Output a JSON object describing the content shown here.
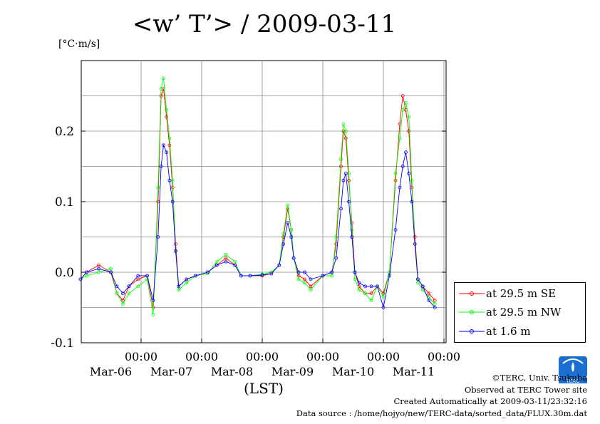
{
  "chart_data": {
    "type": "line",
    "title": "<w’ T’> / 2009-03-11",
    "ylabel": "[°C·m/s]",
    "xlabel": "(LST)",
    "ylim": [
      -0.1,
      0.3
    ],
    "yticks": [
      {
        "value": 0.2,
        "label": "0.2"
      },
      {
        "value": 0.1,
        "label": "0.1"
      },
      {
        "value": 0.0,
        "label": "0.0"
      },
      {
        "value": -0.1,
        "label": "-0.1"
      }
    ],
    "xlim_days": [
      5.0,
      11.0
    ],
    "xticks": [
      {
        "day": 7,
        "time": "00:00",
        "date": "Mar-06"
      },
      {
        "day": 8,
        "time": "00:00",
        "date": "Mar-07"
      },
      {
        "day": 9,
        "time": "00:00",
        "date": "Mar-08"
      },
      {
        "day": 10,
        "time": "00:00",
        "date": "Mar-09"
      },
      {
        "day": 11,
        "time": "00:00",
        "date": "Mar-10"
      },
      {
        "day": 12,
        "time": "00:00",
        "date": "Mar-11"
      }
    ],
    "grid": true,
    "legend_position": "bottom-right outside",
    "series": [
      {
        "name": "at 29.5 m SE",
        "color": "#ff0000",
        "points": [
          [
            5.0,
            -0.01
          ],
          [
            5.1,
            0.0
          ],
          [
            5.3,
            0.01
          ],
          [
            5.5,
            0.0
          ],
          [
            5.6,
            -0.03
          ],
          [
            5.7,
            -0.04
          ],
          [
            5.8,
            -0.02
          ],
          [
            5.95,
            -0.01
          ],
          [
            6.1,
            -0.005
          ],
          [
            6.2,
            -0.05
          ],
          [
            6.28,
            0.1
          ],
          [
            6.33,
            0.25
          ],
          [
            6.37,
            0.26
          ],
          [
            6.42,
            0.22
          ],
          [
            6.47,
            0.18
          ],
          [
            6.52,
            0.12
          ],
          [
            6.57,
            0.04
          ],
          [
            6.62,
            -0.02
          ],
          [
            6.75,
            -0.01
          ],
          [
            6.9,
            -0.005
          ],
          [
            7.1,
            0.0
          ],
          [
            7.25,
            0.01
          ],
          [
            7.4,
            0.02
          ],
          [
            7.55,
            0.01
          ],
          [
            7.65,
            -0.005
          ],
          [
            7.8,
            -0.005
          ],
          [
            8.0,
            -0.005
          ],
          [
            8.15,
            -0.002
          ],
          [
            8.28,
            0.01
          ],
          [
            8.35,
            0.05
          ],
          [
            8.42,
            0.09
          ],
          [
            8.48,
            0.06
          ],
          [
            8.52,
            0.02
          ],
          [
            8.6,
            -0.005
          ],
          [
            8.7,
            -0.01
          ],
          [
            8.8,
            -0.02
          ],
          [
            9.0,
            -0.005
          ],
          [
            9.15,
            0.0
          ],
          [
            9.22,
            0.04
          ],
          [
            9.3,
            0.15
          ],
          [
            9.34,
            0.2
          ],
          [
            9.38,
            0.19
          ],
          [
            9.43,
            0.13
          ],
          [
            9.48,
            0.07
          ],
          [
            9.53,
            0.0
          ],
          [
            9.6,
            -0.02
          ],
          [
            9.7,
            -0.03
          ],
          [
            9.8,
            -0.03
          ],
          [
            9.9,
            -0.02
          ],
          [
            10.0,
            -0.03
          ],
          [
            10.1,
            0.0
          ],
          [
            10.2,
            0.13
          ],
          [
            10.27,
            0.21
          ],
          [
            10.32,
            0.25
          ],
          [
            10.37,
            0.23
          ],
          [
            10.42,
            0.2
          ],
          [
            10.47,
            0.12
          ],
          [
            10.52,
            0.05
          ],
          [
            10.57,
            -0.01
          ],
          [
            10.65,
            -0.02
          ],
          [
            10.75,
            -0.03
          ],
          [
            10.85,
            -0.04
          ]
        ]
      },
      {
        "name": "at 29.5 m NW",
        "color": "#00ff00",
        "points": [
          [
            5.0,
            -0.01
          ],
          [
            5.1,
            -0.005
          ],
          [
            5.3,
            0.0
          ],
          [
            5.5,
            0.005
          ],
          [
            5.6,
            -0.03
          ],
          [
            5.7,
            -0.045
          ],
          [
            5.8,
            -0.03
          ],
          [
            5.95,
            -0.02
          ],
          [
            6.1,
            -0.01
          ],
          [
            6.2,
            -0.06
          ],
          [
            6.28,
            0.12
          ],
          [
            6.33,
            0.26
          ],
          [
            6.37,
            0.275
          ],
          [
            6.42,
            0.23
          ],
          [
            6.47,
            0.19
          ],
          [
            6.52,
            0.13
          ],
          [
            6.57,
            0.03
          ],
          [
            6.62,
            -0.025
          ],
          [
            6.75,
            -0.015
          ],
          [
            6.9,
            -0.005
          ],
          [
            7.1,
            -0.002
          ],
          [
            7.25,
            0.015
          ],
          [
            7.4,
            0.025
          ],
          [
            7.55,
            0.015
          ],
          [
            7.65,
            -0.005
          ],
          [
            7.8,
            -0.005
          ],
          [
            8.0,
            -0.003
          ],
          [
            8.15,
            0.0
          ],
          [
            8.28,
            0.01
          ],
          [
            8.35,
            0.055
          ],
          [
            8.42,
            0.095
          ],
          [
            8.48,
            0.06
          ],
          [
            8.52,
            0.02
          ],
          [
            8.6,
            -0.01
          ],
          [
            8.7,
            -0.015
          ],
          [
            8.8,
            -0.025
          ],
          [
            9.0,
            -0.005
          ],
          [
            9.15,
            -0.005
          ],
          [
            9.22,
            0.05
          ],
          [
            9.3,
            0.16
          ],
          [
            9.34,
            0.21
          ],
          [
            9.38,
            0.2
          ],
          [
            9.43,
            0.14
          ],
          [
            9.48,
            0.06
          ],
          [
            9.53,
            -0.01
          ],
          [
            9.6,
            -0.025
          ],
          [
            9.7,
            -0.03
          ],
          [
            9.8,
            -0.04
          ],
          [
            9.9,
            -0.02
          ],
          [
            10.0,
            -0.035
          ],
          [
            10.1,
            0.0
          ],
          [
            10.2,
            0.14
          ],
          [
            10.27,
            0.19
          ],
          [
            10.32,
            0.23
          ],
          [
            10.37,
            0.24
          ],
          [
            10.42,
            0.22
          ],
          [
            10.47,
            0.13
          ],
          [
            10.52,
            0.04
          ],
          [
            10.57,
            -0.015
          ],
          [
            10.65,
            -0.025
          ],
          [
            10.75,
            -0.035
          ],
          [
            10.85,
            -0.045
          ]
        ]
      },
      {
        "name": "at 1.6 m",
        "color": "#0000ff",
        "points": [
          [
            5.0,
            -0.01
          ],
          [
            5.1,
            0.0
          ],
          [
            5.3,
            0.005
          ],
          [
            5.5,
            0.0
          ],
          [
            5.6,
            -0.02
          ],
          [
            5.7,
            -0.03
          ],
          [
            5.8,
            -0.02
          ],
          [
            5.95,
            -0.005
          ],
          [
            6.1,
            -0.005
          ],
          [
            6.2,
            -0.04
          ],
          [
            6.28,
            0.05
          ],
          [
            6.33,
            0.15
          ],
          [
            6.37,
            0.18
          ],
          [
            6.42,
            0.17
          ],
          [
            6.47,
            0.13
          ],
          [
            6.52,
            0.1
          ],
          [
            6.57,
            0.03
          ],
          [
            6.62,
            -0.02
          ],
          [
            6.75,
            -0.01
          ],
          [
            6.9,
            -0.005
          ],
          [
            7.1,
            0.0
          ],
          [
            7.25,
            0.01
          ],
          [
            7.4,
            0.015
          ],
          [
            7.55,
            0.01
          ],
          [
            7.65,
            -0.005
          ],
          [
            7.8,
            -0.005
          ],
          [
            8.0,
            -0.004
          ],
          [
            8.15,
            -0.002
          ],
          [
            8.28,
            0.01
          ],
          [
            8.35,
            0.04
          ],
          [
            8.42,
            0.07
          ],
          [
            8.48,
            0.05
          ],
          [
            8.52,
            0.02
          ],
          [
            8.6,
            0.0
          ],
          [
            8.7,
            0.0
          ],
          [
            8.8,
            -0.01
          ],
          [
            9.0,
            -0.005
          ],
          [
            9.15,
            0.0
          ],
          [
            9.22,
            0.02
          ],
          [
            9.3,
            0.09
          ],
          [
            9.34,
            0.13
          ],
          [
            9.38,
            0.14
          ],
          [
            9.43,
            0.1
          ],
          [
            9.48,
            0.05
          ],
          [
            9.53,
            0.0
          ],
          [
            9.6,
            -0.015
          ],
          [
            9.7,
            -0.02
          ],
          [
            9.8,
            -0.02
          ],
          [
            9.9,
            -0.02
          ],
          [
            10.0,
            -0.05
          ],
          [
            10.1,
            -0.005
          ],
          [
            10.2,
            0.06
          ],
          [
            10.27,
            0.12
          ],
          [
            10.32,
            0.15
          ],
          [
            10.37,
            0.17
          ],
          [
            10.42,
            0.14
          ],
          [
            10.47,
            0.1
          ],
          [
            10.52,
            0.04
          ],
          [
            10.57,
            -0.01
          ],
          [
            10.65,
            -0.02
          ],
          [
            10.75,
            -0.04
          ],
          [
            10.85,
            -0.05
          ]
        ]
      }
    ]
  },
  "credits": {
    "copyright": "©TERC, Univ. Tsukuba",
    "observed": "Observed at TERC Tower site",
    "created": "Created Automatically at 2009-03-11/23:32:16",
    "source": "Data source : /home/hojyo/new/TERC-data/sorted_data/FLUX.30m.dat"
  },
  "logo_text": "TERC"
}
